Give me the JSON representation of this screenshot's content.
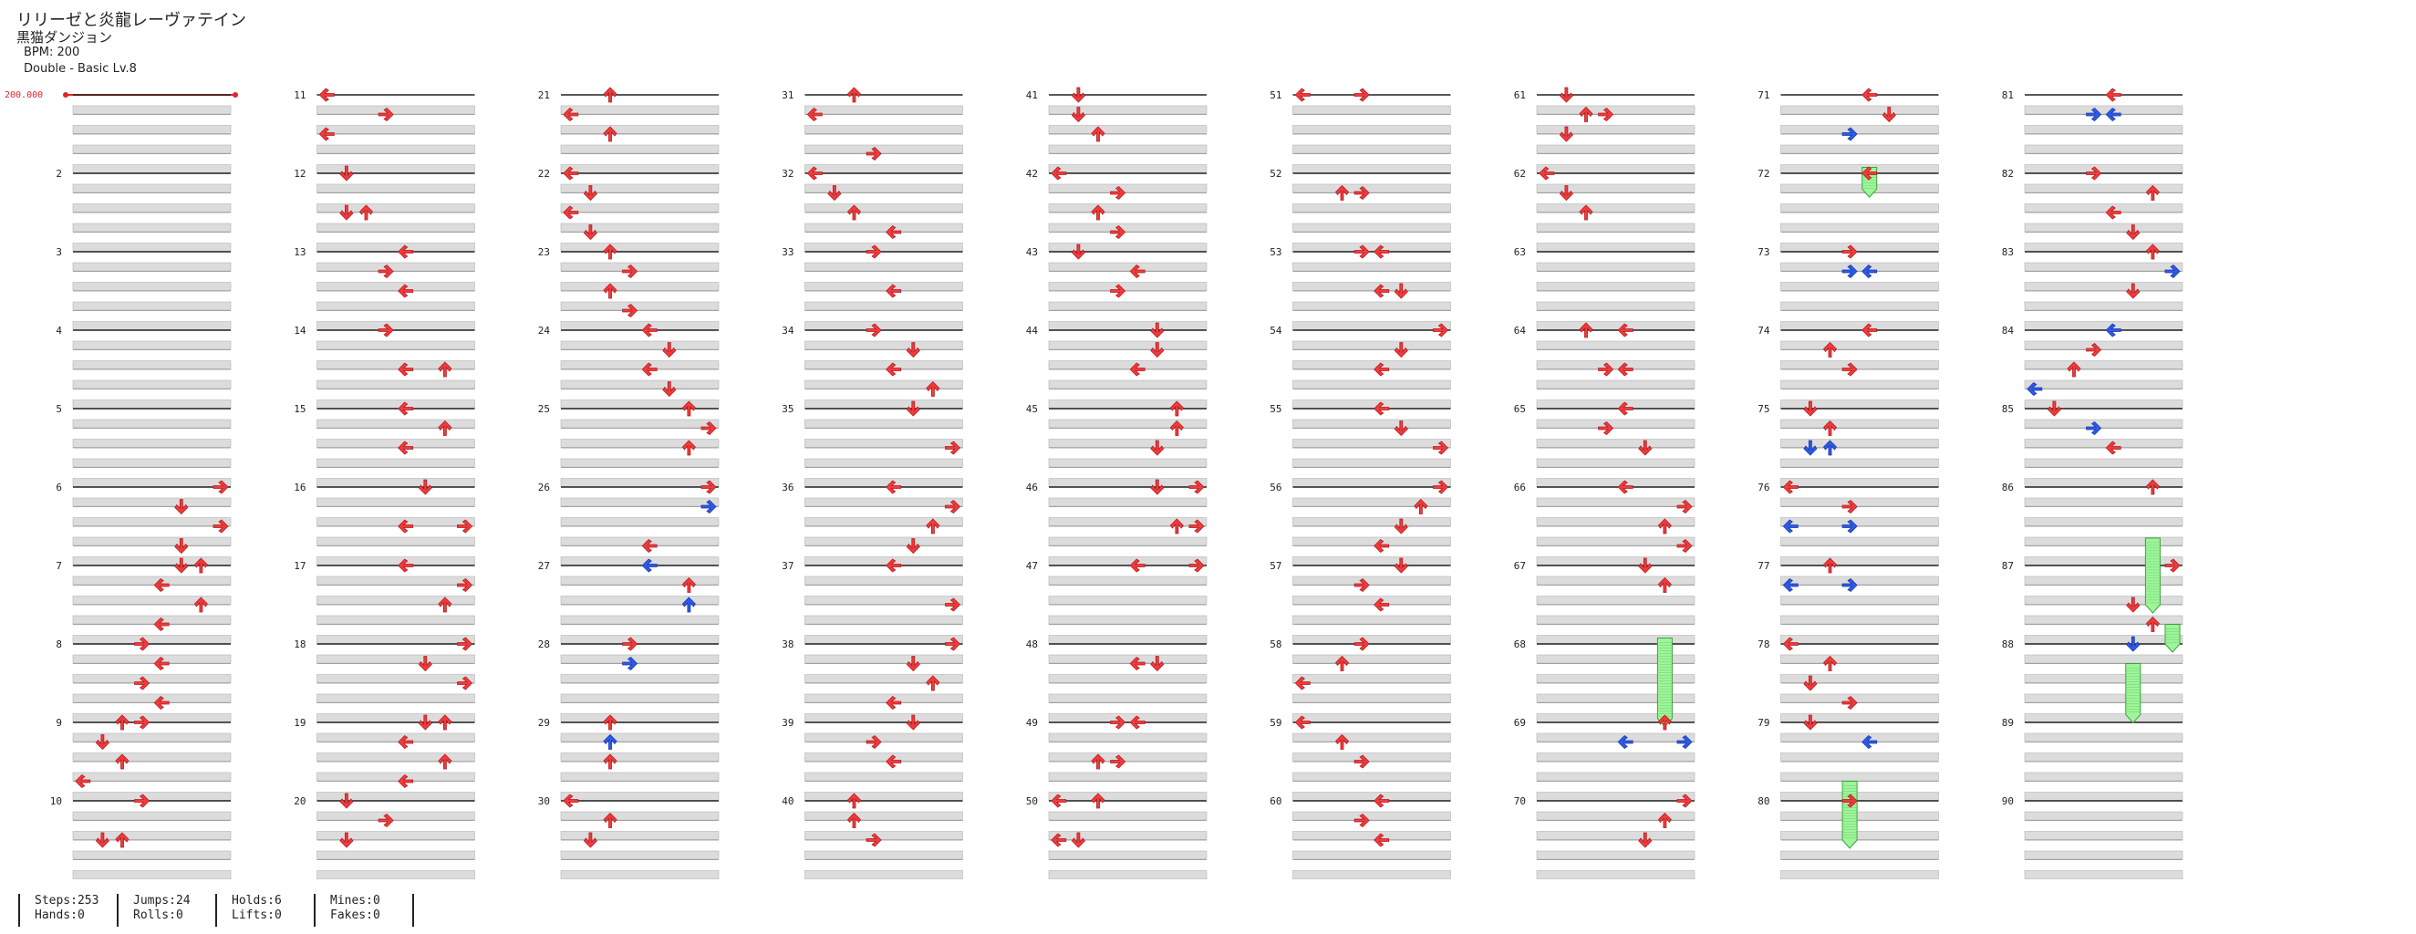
{
  "song": {
    "title": "リリーゼと炎龍レーヴァテイン",
    "artist": "黒猫ダンジョン",
    "bpm_label": "BPM: 200",
    "difficulty_label": "Double - Basic Lv.8"
  },
  "bpm_marker": "200.000",
  "colors": {
    "note": "#ef3b3d",
    "note_stroke": "#b51c1f",
    "blue": "#2d5ae8",
    "blue_stroke": "#1a38a8",
    "hold": "#9ef59a"
  },
  "measure_numbers": [
    "2",
    "3",
    "4",
    "5",
    "6",
    "7",
    "8",
    "9",
    "10",
    "11",
    "12",
    "13",
    "14",
    "15",
    "16",
    "17",
    "18",
    "19",
    "20",
    "21",
    "22",
    "23",
    "24",
    "25",
    "26",
    "27",
    "28",
    "29",
    "30",
    "31",
    "32",
    "33",
    "34",
    "35",
    "36",
    "37",
    "38",
    "39",
    "40",
    "41",
    "42",
    "43",
    "44",
    "45",
    "46",
    "47",
    "48",
    "49",
    "50",
    "51",
    "52",
    "53",
    "54",
    "55",
    "56",
    "57",
    "58",
    "59",
    "60",
    "61",
    "62",
    "63",
    "64",
    "65",
    "66",
    "67",
    "68",
    "69",
    "70",
    "71",
    "72",
    "73",
    "74",
    "75",
    "76",
    "77",
    "78",
    "79",
    "80",
    "81",
    "82",
    "83",
    "84",
    "85",
    "86",
    "87",
    "88",
    "89",
    "90"
  ],
  "stats": {
    "steps": "Steps:253",
    "hands": "Hands:0",
    "jumps": "Jumps:24",
    "rolls": "Rolls:0",
    "holds": "Holds:6",
    "lifts": "Lifts:0",
    "mines": "Mines:0",
    "fakes": "Fakes:0"
  },
  "notes": [
    [
      6,
      0,
      7,
      "R"
    ],
    [
      6,
      1,
      5,
      "D"
    ],
    [
      6,
      2,
      7,
      "R"
    ],
    [
      6,
      3,
      5,
      "D"
    ],
    [
      7,
      0,
      5,
      "D"
    ],
    [
      7,
      0,
      6,
      "U"
    ],
    [
      7,
      1,
      4,
      "L"
    ],
    [
      7,
      2,
      6,
      "U"
    ],
    [
      7,
      3,
      4,
      "L"
    ],
    [
      8,
      0,
      3,
      "R"
    ],
    [
      8,
      1,
      4,
      "L"
    ],
    [
      8,
      2,
      3,
      "R"
    ],
    [
      8,
      3,
      4,
      "L"
    ],
    [
      9,
      0,
      3,
      "R"
    ],
    [
      9,
      0,
      2,
      "U"
    ],
    [
      9,
      1,
      1,
      "D"
    ],
    [
      9,
      2,
      2,
      "U"
    ],
    [
      9,
      3,
      0,
      "L"
    ],
    [
      10,
      0,
      3,
      "R"
    ],
    [
      10,
      2,
      1,
      "D"
    ],
    [
      10,
      2,
      2,
      "U"
    ],
    [
      11,
      0,
      0,
      "L"
    ],
    [
      11,
      1,
      3,
      "R"
    ],
    [
      11,
      2,
      0,
      "L"
    ],
    [
      12,
      0,
      1,
      "D"
    ],
    [
      12,
      2,
      1,
      "D"
    ],
    [
      12,
      2,
      2,
      "U"
    ],
    [
      13,
      0,
      4,
      "L"
    ],
    [
      13,
      1,
      3,
      "R"
    ],
    [
      13,
      2,
      4,
      "L"
    ],
    [
      14,
      0,
      3,
      "R"
    ],
    [
      14,
      2,
      4,
      "L"
    ],
    [
      14,
      2,
      6,
      "U"
    ],
    [
      15,
      0,
      4,
      "L"
    ],
    [
      15,
      1,
      6,
      "U"
    ],
    [
      15,
      2,
      4,
      "L"
    ],
    [
      16,
      0,
      5,
      "D"
    ],
    [
      16,
      2,
      4,
      "L"
    ],
    [
      16,
      2,
      7,
      "R"
    ],
    [
      17,
      0,
      4,
      "L"
    ],
    [
      17,
      1,
      7,
      "R"
    ],
    [
      17,
      2,
      6,
      "U"
    ],
    [
      18,
      0,
      7,
      "R"
    ],
    [
      18,
      1,
      5,
      "D"
    ],
    [
      18,
      2,
      7,
      "R"
    ],
    [
      19,
      0,
      5,
      "D"
    ],
    [
      19,
      0,
      6,
      "U"
    ],
    [
      19,
      1,
      4,
      "L"
    ],
    [
      19,
      2,
      6,
      "U"
    ],
    [
      19,
      3,
      4,
      "L"
    ],
    [
      20,
      0,
      1,
      "D"
    ],
    [
      20,
      1,
      3,
      "R"
    ],
    [
      20,
      2,
      1,
      "D"
    ],
    [
      21,
      0,
      2,
      "U"
    ],
    [
      21,
      1,
      0,
      "L"
    ],
    [
      21,
      2,
      2,
      "U"
    ],
    [
      22,
      0,
      0,
      "L"
    ],
    [
      22,
      1,
      1,
      "D"
    ],
    [
      22,
      2,
      0,
      "L"
    ],
    [
      22,
      3,
      1,
      "D"
    ],
    [
      23,
      0,
      2,
      "U"
    ],
    [
      23,
      1,
      3,
      "R"
    ],
    [
      23,
      2,
      2,
      "U"
    ],
    [
      23,
      3,
      3,
      "R"
    ],
    [
      24,
      0,
      4,
      "L"
    ],
    [
      24,
      1,
      5,
      "D"
    ],
    [
      24,
      2,
      4,
      "L"
    ],
    [
      24,
      3,
      5,
      "D"
    ],
    [
      25,
      0,
      6,
      "U"
    ],
    [
      25,
      1,
      7,
      "R"
    ],
    [
      25,
      2,
      6,
      "U"
    ],
    [
      26,
      0,
      7,
      "R"
    ],
    [
      26,
      1,
      7,
      "R",
      "b"
    ],
    [
      26,
      3,
      4,
      "L"
    ],
    [
      27,
      0,
      4,
      "L",
      "b"
    ],
    [
      27,
      1,
      6,
      "U"
    ],
    [
      27,
      2,
      6,
      "U",
      "b"
    ],
    [
      28,
      0,
      3,
      "R"
    ],
    [
      28,
      1,
      3,
      "R",
      "b"
    ],
    [
      29,
      0,
      2,
      "U"
    ],
    [
      29,
      1,
      2,
      "U",
      "b"
    ],
    [
      29,
      2,
      2,
      "U"
    ],
    [
      30,
      0,
      0,
      "L"
    ],
    [
      30,
      1,
      2,
      "U"
    ],
    [
      30,
      2,
      1,
      "D"
    ],
    [
      31,
      0,
      2,
      "U"
    ],
    [
      31,
      1,
      0,
      "L"
    ],
    [
      31,
      3,
      3,
      "R"
    ],
    [
      32,
      0,
      0,
      "L"
    ],
    [
      32,
      1,
      1,
      "D"
    ],
    [
      32,
      2,
      2,
      "U"
    ],
    [
      32,
      3,
      4,
      "L"
    ],
    [
      33,
      0,
      3,
      "R"
    ],
    [
      33,
      2,
      4,
      "L"
    ],
    [
      34,
      0,
      3,
      "R"
    ],
    [
      34,
      1,
      5,
      "D"
    ],
    [
      34,
      2,
      4,
      "L"
    ],
    [
      34,
      3,
      6,
      "U"
    ],
    [
      35,
      0,
      5,
      "D"
    ],
    [
      35,
      2,
      7,
      "R"
    ],
    [
      36,
      0,
      4,
      "L"
    ],
    [
      36,
      1,
      7,
      "R"
    ],
    [
      36,
      2,
      6,
      "U"
    ],
    [
      36,
      3,
      5,
      "D"
    ],
    [
      37,
      0,
      4,
      "L"
    ],
    [
      37,
      2,
      7,
      "R"
    ],
    [
      38,
      0,
      7,
      "R"
    ],
    [
      38,
      1,
      5,
      "D"
    ],
    [
      38,
      2,
      6,
      "U"
    ],
    [
      38,
      3,
      4,
      "L"
    ],
    [
      39,
      0,
      5,
      "D"
    ],
    [
      39,
      1,
      3,
      "R"
    ],
    [
      39,
      2,
      4,
      "L"
    ],
    [
      40,
      0,
      2,
      "U"
    ],
    [
      40,
      1,
      2,
      "U"
    ],
    [
      40,
      2,
      3,
      "R"
    ],
    [
      41,
      0,
      1,
      "D"
    ],
    [
      41,
      1,
      1,
      "D"
    ],
    [
      41,
      2,
      2,
      "U"
    ],
    [
      42,
      0,
      0,
      "L"
    ],
    [
      42,
      1,
      3,
      "R"
    ],
    [
      42,
      2,
      2,
      "U"
    ],
    [
      42,
      3,
      3,
      "R"
    ],
    [
      43,
      0,
      1,
      "D"
    ],
    [
      43,
      1,
      4,
      "L"
    ],
    [
      43,
      2,
      3,
      "R"
    ],
    [
      44,
      0,
      5,
      "D"
    ],
    [
      44,
      1,
      5,
      "D"
    ],
    [
      44,
      2,
      4,
      "L"
    ],
    [
      45,
      0,
      6,
      "U"
    ],
    [
      45,
      1,
      6,
      "U"
    ],
    [
      45,
      2,
      5,
      "D"
    ],
    [
      46,
      0,
      5,
      "D"
    ],
    [
      46,
      0,
      7,
      "R"
    ],
    [
      46,
      2,
      6,
      "U"
    ],
    [
      46,
      2,
      7,
      "R"
    ],
    [
      47,
      0,
      4,
      "L"
    ],
    [
      47,
      0,
      7,
      "R"
    ],
    [
      48,
      1,
      4,
      "L"
    ],
    [
      48,
      1,
      5,
      "D"
    ],
    [
      49,
      0,
      3,
      "R"
    ],
    [
      49,
      0,
      4,
      "L"
    ],
    [
      49,
      2,
      2,
      "U"
    ],
    [
      49,
      2,
      3,
      "R"
    ],
    [
      50,
      0,
      0,
      "L"
    ],
    [
      50,
      0,
      2,
      "U"
    ],
    [
      50,
      2,
      0,
      "L"
    ],
    [
      50,
      2,
      1,
      "D"
    ],
    [
      51,
      0,
      0,
      "L"
    ],
    [
      51,
      0,
      3,
      "R"
    ],
    [
      52,
      1,
      2,
      "U"
    ],
    [
      52,
      1,
      3,
      "R"
    ],
    [
      53,
      0,
      3,
      "R"
    ],
    [
      53,
      0,
      4,
      "L"
    ],
    [
      53,
      2,
      4,
      "L"
    ],
    [
      53,
      2,
      5,
      "D"
    ],
    [
      54,
      0,
      7,
      "R"
    ],
    [
      54,
      1,
      5,
      "D"
    ],
    [
      54,
      2,
      4,
      "L"
    ],
    [
      55,
      0,
      4,
      "L"
    ],
    [
      55,
      1,
      5,
      "D"
    ],
    [
      55,
      2,
      7,
      "R"
    ],
    [
      56,
      0,
      7,
      "R"
    ],
    [
      56,
      1,
      6,
      "U"
    ],
    [
      56,
      2,
      5,
      "D"
    ],
    [
      56,
      3,
      4,
      "L"
    ],
    [
      57,
      0,
      5,
      "D"
    ],
    [
      57,
      1,
      3,
      "R"
    ],
    [
      57,
      2,
      4,
      "L"
    ],
    [
      58,
      0,
      3,
      "R"
    ],
    [
      58,
      1,
      2,
      "U"
    ],
    [
      58,
      2,
      0,
      "L"
    ],
    [
      59,
      0,
      0,
      "L"
    ],
    [
      59,
      1,
      2,
      "U"
    ],
    [
      59,
      2,
      3,
      "R"
    ],
    [
      60,
      0,
      4,
      "L"
    ],
    [
      60,
      1,
      3,
      "R"
    ],
    [
      60,
      2,
      4,
      "L"
    ],
    [
      61,
      0,
      1,
      "D"
    ],
    [
      61,
      1,
      3,
      "R"
    ],
    [
      61,
      1,
      2,
      "U"
    ],
    [
      61,
      2,
      1,
      "D"
    ],
    [
      62,
      0,
      0,
      "L"
    ],
    [
      62,
      1,
      1,
      "D"
    ],
    [
      62,
      2,
      2,
      "U"
    ],
    [
      64,
      0,
      2,
      "U"
    ],
    [
      64,
      0,
      4,
      "L"
    ],
    [
      64,
      2,
      3,
      "R"
    ],
    [
      64,
      2,
      4,
      "L"
    ],
    [
      65,
      0,
      4,
      "L"
    ],
    [
      65,
      1,
      3,
      "R"
    ],
    [
      65,
      2,
      5,
      "D"
    ],
    [
      66,
      0,
      4,
      "L"
    ],
    [
      66,
      1,
      7,
      "R"
    ],
    [
      66,
      2,
      6,
      "U"
    ],
    [
      66,
      3,
      7,
      "R"
    ],
    [
      67,
      0,
      5,
      "D"
    ],
    [
      67,
      1,
      6,
      "U"
    ],
    [
      69,
      0,
      6,
      "U"
    ],
    [
      69,
      1,
      4,
      "L",
      "b"
    ],
    [
      69,
      1,
      7,
      "R",
      "b"
    ],
    [
      70,
      0,
      7,
      "R"
    ],
    [
      70,
      1,
      6,
      "U"
    ],
    [
      70,
      2,
      5,
      "D"
    ],
    [
      71,
      0,
      4,
      "L"
    ],
    [
      71,
      1,
      5,
      "D"
    ],
    [
      71,
      2,
      3,
      "R",
      "b"
    ],
    [
      72,
      0,
      4,
      "L"
    ],
    [
      73,
      0,
      3,
      "R"
    ],
    [
      73,
      1,
      3,
      "R",
      "b"
    ],
    [
      73,
      1,
      4,
      "L",
      "b"
    ],
    [
      74,
      0,
      4,
      "L"
    ],
    [
      74,
      1,
      2,
      "U"
    ],
    [
      74,
      2,
      3,
      "R"
    ],
    [
      75,
      0,
      1,
      "D"
    ],
    [
      75,
      1,
      2,
      "U"
    ],
    [
      75,
      2,
      1,
      "D",
      "b"
    ],
    [
      75,
      2,
      2,
      "U",
      "b"
    ],
    [
      76,
      0,
      0,
      "L"
    ],
    [
      76,
      1,
      3,
      "R"
    ],
    [
      76,
      2,
      0,
      "L",
      "b"
    ],
    [
      76,
      2,
      3,
      "R",
      "b"
    ],
    [
      77,
      0,
      2,
      "U"
    ],
    [
      77,
      1,
      0,
      "L",
      "b"
    ],
    [
      77,
      1,
      3,
      "R",
      "b"
    ],
    [
      78,
      0,
      0,
      "L"
    ],
    [
      78,
      1,
      2,
      "U"
    ],
    [
      78,
      2,
      1,
      "D"
    ],
    [
      78,
      3,
      3,
      "R"
    ],
    [
      79,
      0,
      1,
      "D"
    ],
    [
      79,
      1,
      4,
      "L",
      "b"
    ],
    [
      80,
      0,
      3,
      "R"
    ],
    [
      81,
      0,
      4,
      "L"
    ],
    [
      81,
      1,
      3,
      "R",
      "b"
    ],
    [
      81,
      1,
      4,
      "L",
      "b"
    ],
    [
      82,
      0,
      3,
      "R"
    ],
    [
      82,
      1,
      6,
      "U"
    ],
    [
      82,
      2,
      4,
      "L"
    ],
    [
      82,
      3,
      5,
      "D"
    ],
    [
      83,
      0,
      6,
      "U"
    ],
    [
      83,
      1,
      7,
      "R",
      "b"
    ],
    [
      83,
      2,
      5,
      "D"
    ],
    [
      84,
      0,
      4,
      "L",
      "b"
    ],
    [
      84,
      1,
      3,
      "R"
    ],
    [
      84,
      2,
      2,
      "U"
    ],
    [
      84,
      3,
      0,
      "L",
      "b"
    ],
    [
      85,
      0,
      1,
      "D"
    ],
    [
      85,
      1,
      3,
      "R",
      "b"
    ],
    [
      85,
      2,
      4,
      "L"
    ],
    [
      86,
      0,
      6,
      "U"
    ],
    [
      87,
      0,
      7,
      "R"
    ],
    [
      87,
      2,
      5,
      "D"
    ],
    [
      87,
      3,
      6,
      "U"
    ],
    [
      88,
      0,
      5,
      "D",
      "b"
    ]
  ],
  "holds": [
    [
      67,
      3.7,
      6,
      68.95
    ],
    [
      71,
      3.7,
      4,
      72.2
    ],
    [
      79,
      3.0,
      3,
      80.5
    ],
    [
      86,
      2.6,
      6,
      87.5
    ],
    [
      87,
      3.0,
      7,
      88.0
    ],
    [
      88,
      1.0,
      5,
      88.9
    ]
  ]
}
